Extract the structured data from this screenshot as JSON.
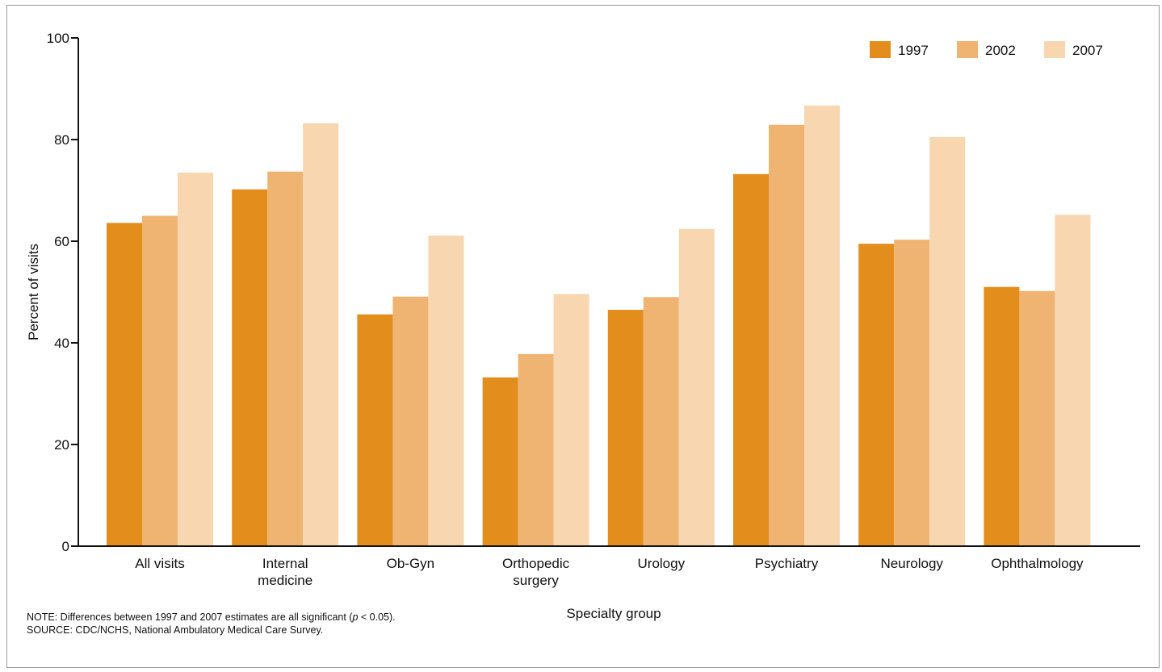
{
  "chart_data": {
    "type": "bar",
    "categories": [
      [
        "All visits"
      ],
      [
        "Internal",
        "medicine"
      ],
      [
        "Ob-Gyn"
      ],
      [
        "Orthopedic",
        "surgery"
      ],
      [
        "Urology"
      ],
      [
        "Psychiatry"
      ],
      [
        "Neurology"
      ],
      [
        "Ophthalmology"
      ]
    ],
    "series": [
      {
        "name": "1997",
        "color": "#e38d1d",
        "values": [
          63.6,
          70.2,
          45.6,
          33.2,
          46.5,
          73.2,
          59.5,
          51.0
        ]
      },
      {
        "name": "2002",
        "color": "#f0b472",
        "values": [
          65.0,
          73.7,
          49.1,
          37.8,
          49.0,
          82.9,
          60.3,
          50.2
        ]
      },
      {
        "name": "2007",
        "color": "#f7d6b0",
        "values": [
          73.5,
          83.2,
          61.1,
          49.6,
          62.4,
          86.7,
          80.5,
          65.2
        ]
      }
    ],
    "xlabel": "Specialty group",
    "ylabel": "Percent of visits",
    "ylim": [
      0,
      100
    ],
    "yticks": [
      0,
      20,
      40,
      60,
      80,
      100
    ],
    "grid": false,
    "legend_position": "top-right"
  },
  "notes": {
    "note_prefix": "NOTE: Differences between 1997 and 2007 estimates are all significant (",
    "note_p": "p",
    "note_suffix": " < 0.05).",
    "source": "SOURCE: CDC/NCHS, National Ambulatory Medical Care Survey."
  }
}
